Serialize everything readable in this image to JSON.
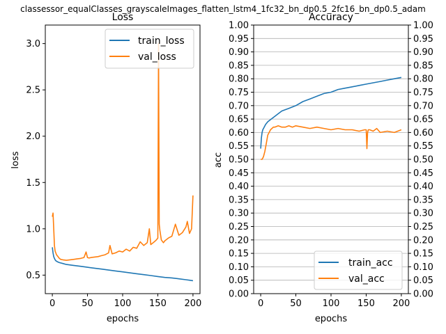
{
  "figure": {
    "suptitle": "classessor_equalClasses_grayscaleImages_flatten_lstm4_1fc32_bn_dp0.5_2fc16_bn_dp0.5_adam"
  },
  "colors": {
    "train": "#1f77b4",
    "val": "#ff7f0e",
    "grid": "#b0b0b0"
  },
  "chart_data": [
    {
      "type": "line",
      "title": "Loss",
      "xlabel": "epochs",
      "ylabel": "loss",
      "xlim": [
        -10,
        210
      ],
      "ylim": [
        0.3,
        3.2
      ],
      "xticks": [
        0,
        50,
        100,
        150,
        200
      ],
      "xtick_labels": [
        "0",
        "50",
        "100",
        "150",
        "200"
      ],
      "yticks": [
        0.5,
        1.0,
        1.5,
        2.0,
        2.5,
        3.0
      ],
      "ytick_labels": [
        "0.5",
        "1.0",
        "1.5",
        "2.0",
        "2.5",
        "3.0"
      ],
      "grid": false,
      "legend_position": "upper right",
      "series": [
        {
          "name": "train_loss",
          "color": "#1f77b4",
          "x": [
            0,
            1,
            2,
            3,
            4,
            5,
            7,
            10,
            15,
            20,
            30,
            40,
            50,
            60,
            70,
            80,
            90,
            100,
            110,
            120,
            130,
            140,
            150,
            160,
            170,
            180,
            190,
            195,
            200
          ],
          "y": [
            0.8,
            0.74,
            0.7,
            0.68,
            0.665,
            0.655,
            0.645,
            0.635,
            0.625,
            0.615,
            0.605,
            0.595,
            0.585,
            0.575,
            0.565,
            0.555,
            0.545,
            0.535,
            0.525,
            0.515,
            0.505,
            0.495,
            0.485,
            0.475,
            0.47,
            0.46,
            0.45,
            0.445,
            0.44
          ]
        },
        {
          "name": "val_loss",
          "color": "#ff7f0e",
          "x": [
            0,
            1,
            2,
            3,
            4,
            6,
            8,
            10,
            12,
            15,
            20,
            25,
            30,
            35,
            40,
            45,
            48,
            50,
            52,
            55,
            60,
            65,
            70,
            75,
            80,
            82,
            85,
            90,
            95,
            100,
            105,
            110,
            115,
            120,
            125,
            130,
            135,
            138,
            140,
            145,
            148,
            150,
            151,
            152,
            153,
            155,
            158,
            160,
            165,
            170,
            175,
            180,
            185,
            190,
            192,
            195,
            198,
            200
          ],
          "y": [
            1.13,
            1.17,
            1.0,
            0.82,
            0.76,
            0.72,
            0.7,
            0.68,
            0.67,
            0.665,
            0.66,
            0.665,
            0.67,
            0.675,
            0.68,
            0.69,
            0.75,
            0.69,
            0.685,
            0.69,
            0.695,
            0.7,
            0.71,
            0.72,
            0.74,
            0.82,
            0.73,
            0.74,
            0.76,
            0.75,
            0.78,
            0.76,
            0.8,
            0.79,
            0.86,
            0.82,
            0.85,
            1.0,
            0.83,
            0.86,
            0.88,
            0.9,
            3.0,
            1.05,
            0.98,
            0.88,
            0.85,
            0.87,
            0.9,
            0.92,
            1.05,
            0.93,
            0.96,
            1.02,
            1.08,
            0.95,
            1.0,
            1.36
          ]
        }
      ]
    },
    {
      "type": "line",
      "title": "Accuracy",
      "xlabel": "epochs",
      "ylabel": "acc",
      "xlim": [
        -10,
        210
      ],
      "ylim": [
        0.0,
        1.0
      ],
      "xticks": [
        0,
        50,
        100,
        150,
        200
      ],
      "xtick_labels": [
        "0",
        "50",
        "100",
        "150",
        "200"
      ],
      "yticks": [
        0.0,
        0.05,
        0.1,
        0.15,
        0.2,
        0.25,
        0.3,
        0.35,
        0.4,
        0.45,
        0.5,
        0.55,
        0.6,
        0.65,
        0.7,
        0.75,
        0.8,
        0.85,
        0.9,
        0.95,
        1.0
      ],
      "ytick_labels": [
        "0.00",
        "0.05",
        "0.10",
        "0.15",
        "0.20",
        "0.25",
        "0.30",
        "0.35",
        "0.40",
        "0.45",
        "0.50",
        "0.55",
        "0.60",
        "0.65",
        "0.70",
        "0.75",
        "0.80",
        "0.85",
        "0.90",
        "0.95",
        "1.00"
      ],
      "grid": true,
      "right_ticks": true,
      "legend_position": "lower right",
      "series": [
        {
          "name": "train_acc",
          "color": "#1f77b4",
          "x": [
            0,
            1,
            2,
            3,
            5,
            7,
            10,
            15,
            20,
            25,
            30,
            35,
            40,
            50,
            60,
            70,
            80,
            90,
            100,
            110,
            120,
            130,
            140,
            150,
            160,
            170,
            180,
            190,
            200
          ],
          "y": [
            0.54,
            0.58,
            0.6,
            0.61,
            0.62,
            0.63,
            0.64,
            0.65,
            0.66,
            0.67,
            0.68,
            0.685,
            0.69,
            0.7,
            0.715,
            0.725,
            0.735,
            0.745,
            0.75,
            0.76,
            0.765,
            0.77,
            0.775,
            0.78,
            0.785,
            0.79,
            0.795,
            0.8,
            0.805
          ]
        },
        {
          "name": "val_acc",
          "color": "#ff7f0e",
          "x": [
            0,
            2,
            4,
            6,
            8,
            10,
            12,
            14,
            16,
            18,
            20,
            25,
            30,
            35,
            40,
            45,
            50,
            60,
            70,
            80,
            90,
            100,
            110,
            120,
            130,
            140,
            148,
            150,
            151,
            152,
            153,
            155,
            160,
            165,
            170,
            180,
            190,
            200
          ],
          "y": [
            0.5,
            0.5,
            0.51,
            0.53,
            0.56,
            0.59,
            0.6,
            0.61,
            0.615,
            0.62,
            0.62,
            0.625,
            0.62,
            0.62,
            0.625,
            0.62,
            0.625,
            0.62,
            0.615,
            0.62,
            0.615,
            0.61,
            0.615,
            0.61,
            0.61,
            0.605,
            0.61,
            0.61,
            0.54,
            0.6,
            0.61,
            0.61,
            0.605,
            0.615,
            0.6,
            0.605,
            0.6,
            0.61
          ]
        }
      ]
    }
  ]
}
